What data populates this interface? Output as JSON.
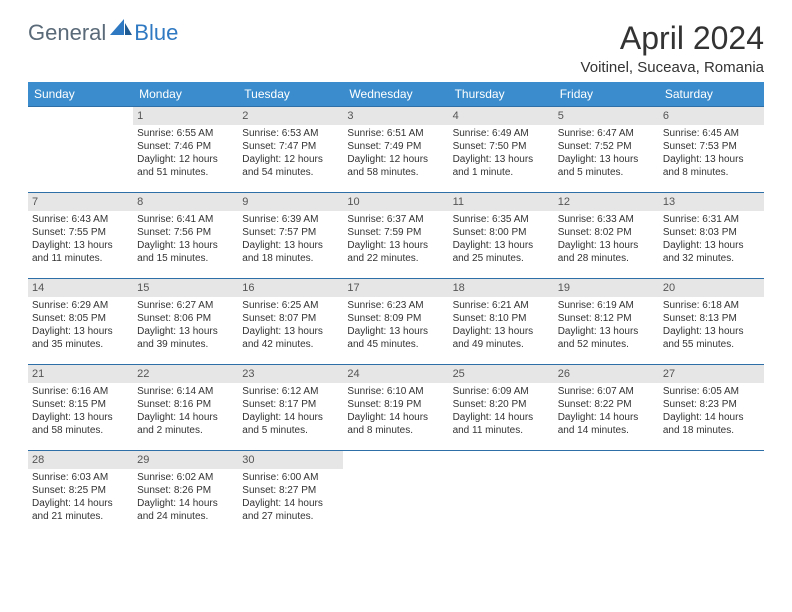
{
  "brand": {
    "part1": "General",
    "part2": "Blue"
  },
  "title": "April 2024",
  "location": "Voitinel, Suceava, Romania",
  "colors": {
    "header_bg": "#3b8ccc",
    "header_text": "#ffffff",
    "row_border": "#2f6fa8",
    "daynum_bg": "#e6e6e6",
    "body_text": "#333333"
  },
  "weekdays": [
    "Sunday",
    "Monday",
    "Tuesday",
    "Wednesday",
    "Thursday",
    "Friday",
    "Saturday"
  ],
  "weeks": [
    [
      {
        "day": "",
        "sunrise": "",
        "sunset": "",
        "daylight": ""
      },
      {
        "day": "1",
        "sunrise": "Sunrise: 6:55 AM",
        "sunset": "Sunset: 7:46 PM",
        "daylight": "Daylight: 12 hours and 51 minutes."
      },
      {
        "day": "2",
        "sunrise": "Sunrise: 6:53 AM",
        "sunset": "Sunset: 7:47 PM",
        "daylight": "Daylight: 12 hours and 54 minutes."
      },
      {
        "day": "3",
        "sunrise": "Sunrise: 6:51 AM",
        "sunset": "Sunset: 7:49 PM",
        "daylight": "Daylight: 12 hours and 58 minutes."
      },
      {
        "day": "4",
        "sunrise": "Sunrise: 6:49 AM",
        "sunset": "Sunset: 7:50 PM",
        "daylight": "Daylight: 13 hours and 1 minute."
      },
      {
        "day": "5",
        "sunrise": "Sunrise: 6:47 AM",
        "sunset": "Sunset: 7:52 PM",
        "daylight": "Daylight: 13 hours and 5 minutes."
      },
      {
        "day": "6",
        "sunrise": "Sunrise: 6:45 AM",
        "sunset": "Sunset: 7:53 PM",
        "daylight": "Daylight: 13 hours and 8 minutes."
      }
    ],
    [
      {
        "day": "7",
        "sunrise": "Sunrise: 6:43 AM",
        "sunset": "Sunset: 7:55 PM",
        "daylight": "Daylight: 13 hours and 11 minutes."
      },
      {
        "day": "8",
        "sunrise": "Sunrise: 6:41 AM",
        "sunset": "Sunset: 7:56 PM",
        "daylight": "Daylight: 13 hours and 15 minutes."
      },
      {
        "day": "9",
        "sunrise": "Sunrise: 6:39 AM",
        "sunset": "Sunset: 7:57 PM",
        "daylight": "Daylight: 13 hours and 18 minutes."
      },
      {
        "day": "10",
        "sunrise": "Sunrise: 6:37 AM",
        "sunset": "Sunset: 7:59 PM",
        "daylight": "Daylight: 13 hours and 22 minutes."
      },
      {
        "day": "11",
        "sunrise": "Sunrise: 6:35 AM",
        "sunset": "Sunset: 8:00 PM",
        "daylight": "Daylight: 13 hours and 25 minutes."
      },
      {
        "day": "12",
        "sunrise": "Sunrise: 6:33 AM",
        "sunset": "Sunset: 8:02 PM",
        "daylight": "Daylight: 13 hours and 28 minutes."
      },
      {
        "day": "13",
        "sunrise": "Sunrise: 6:31 AM",
        "sunset": "Sunset: 8:03 PM",
        "daylight": "Daylight: 13 hours and 32 minutes."
      }
    ],
    [
      {
        "day": "14",
        "sunrise": "Sunrise: 6:29 AM",
        "sunset": "Sunset: 8:05 PM",
        "daylight": "Daylight: 13 hours and 35 minutes."
      },
      {
        "day": "15",
        "sunrise": "Sunrise: 6:27 AM",
        "sunset": "Sunset: 8:06 PM",
        "daylight": "Daylight: 13 hours and 39 minutes."
      },
      {
        "day": "16",
        "sunrise": "Sunrise: 6:25 AM",
        "sunset": "Sunset: 8:07 PM",
        "daylight": "Daylight: 13 hours and 42 minutes."
      },
      {
        "day": "17",
        "sunrise": "Sunrise: 6:23 AM",
        "sunset": "Sunset: 8:09 PM",
        "daylight": "Daylight: 13 hours and 45 minutes."
      },
      {
        "day": "18",
        "sunrise": "Sunrise: 6:21 AM",
        "sunset": "Sunset: 8:10 PM",
        "daylight": "Daylight: 13 hours and 49 minutes."
      },
      {
        "day": "19",
        "sunrise": "Sunrise: 6:19 AM",
        "sunset": "Sunset: 8:12 PM",
        "daylight": "Daylight: 13 hours and 52 minutes."
      },
      {
        "day": "20",
        "sunrise": "Sunrise: 6:18 AM",
        "sunset": "Sunset: 8:13 PM",
        "daylight": "Daylight: 13 hours and 55 minutes."
      }
    ],
    [
      {
        "day": "21",
        "sunrise": "Sunrise: 6:16 AM",
        "sunset": "Sunset: 8:15 PM",
        "daylight": "Daylight: 13 hours and 58 minutes."
      },
      {
        "day": "22",
        "sunrise": "Sunrise: 6:14 AM",
        "sunset": "Sunset: 8:16 PM",
        "daylight": "Daylight: 14 hours and 2 minutes."
      },
      {
        "day": "23",
        "sunrise": "Sunrise: 6:12 AM",
        "sunset": "Sunset: 8:17 PM",
        "daylight": "Daylight: 14 hours and 5 minutes."
      },
      {
        "day": "24",
        "sunrise": "Sunrise: 6:10 AM",
        "sunset": "Sunset: 8:19 PM",
        "daylight": "Daylight: 14 hours and 8 minutes."
      },
      {
        "day": "25",
        "sunrise": "Sunrise: 6:09 AM",
        "sunset": "Sunset: 8:20 PM",
        "daylight": "Daylight: 14 hours and 11 minutes."
      },
      {
        "day": "26",
        "sunrise": "Sunrise: 6:07 AM",
        "sunset": "Sunset: 8:22 PM",
        "daylight": "Daylight: 14 hours and 14 minutes."
      },
      {
        "day": "27",
        "sunrise": "Sunrise: 6:05 AM",
        "sunset": "Sunset: 8:23 PM",
        "daylight": "Daylight: 14 hours and 18 minutes."
      }
    ],
    [
      {
        "day": "28",
        "sunrise": "Sunrise: 6:03 AM",
        "sunset": "Sunset: 8:25 PM",
        "daylight": "Daylight: 14 hours and 21 minutes."
      },
      {
        "day": "29",
        "sunrise": "Sunrise: 6:02 AM",
        "sunset": "Sunset: 8:26 PM",
        "daylight": "Daylight: 14 hours and 24 minutes."
      },
      {
        "day": "30",
        "sunrise": "Sunrise: 6:00 AM",
        "sunset": "Sunset: 8:27 PM",
        "daylight": "Daylight: 14 hours and 27 minutes."
      },
      {
        "day": "",
        "sunrise": "",
        "sunset": "",
        "daylight": ""
      },
      {
        "day": "",
        "sunrise": "",
        "sunset": "",
        "daylight": ""
      },
      {
        "day": "",
        "sunrise": "",
        "sunset": "",
        "daylight": ""
      },
      {
        "day": "",
        "sunrise": "",
        "sunset": "",
        "daylight": ""
      }
    ]
  ]
}
